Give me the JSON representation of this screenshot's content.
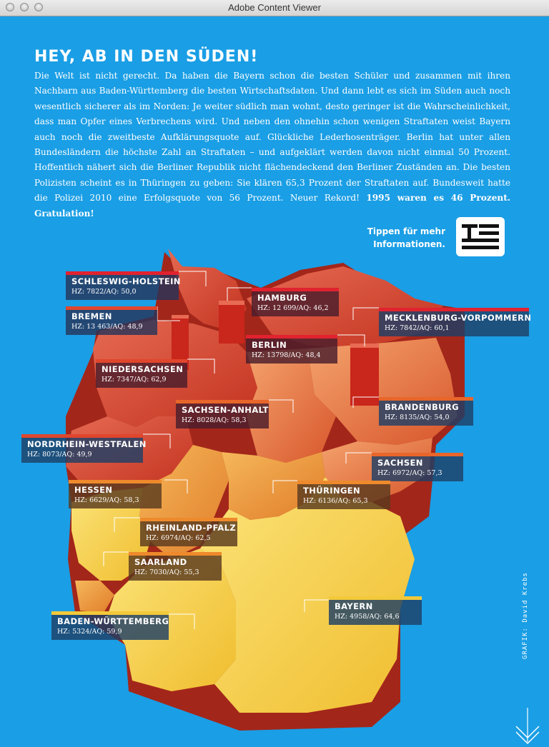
{
  "window": {
    "title": "Adobe Content Viewer"
  },
  "article": {
    "headline": "HEY, AB IN DEN SÜDEN!",
    "body": "Die Welt ist nicht gerecht. Da haben die Bayern schon die besten Schüler und zusammen mit ihren Nachbarn aus Baden-Württemberg die besten Wirtschaftsdaten. Und dann lebt es sich im Süden auch noch wesentlich sicherer als im Norden: Je weiter südlich man wohnt, desto geringer ist die Wahrscheinlichkeit, dass man Opfer eines Verbrechens wird. Und neben den ohnehin schon wenigen Straftaten weist Bayern auch noch die zweitbeste Aufklärungsquote auf. Glückliche Lederhosenträger. Berlin hat unter allen Bundesländern die höchste Zahl an Straftaten – und aufgeklärt werden davon nicht einmal 50 Prozent. Hoffentlich nähert sich die Berliner Republik nicht flächendeckend den Berliner Zuständen an. Die besten Polizisten scheint es in Thüringen zu geben: Sie klären 65,3 Prozent der Straftaten auf. Bundesweit hatte die Polizei 2010 eine Erfolgsquote von 56 Prozent. Neuer Rekord!",
    "highlight": "1995 waren es 46 Prozent. Gratulation!"
  },
  "tip": {
    "line1": "Tippen für mehr",
    "line2": "Informationen.",
    "icon": "text-lines-icon"
  },
  "credit": "GRAFIK: David Krebs",
  "colors": {
    "background": "#1a9ee5",
    "north": "#d9432c",
    "middle": "#e8782f",
    "south": "#f2c93a"
  },
  "regions": [
    {
      "id": "schleswig-holstein",
      "name": "SCHLESWIG-HOLSTEIN",
      "stats": "HZ: 7822/AQ: 50,0",
      "bar": "#e1222f",
      "bg": "#27355a"
    },
    {
      "id": "hamburg",
      "name": "HAMBURG",
      "stats": "HZ: 12 699/AQ: 46,2",
      "bar": "#e1222f",
      "bg": "#4a1d2c"
    },
    {
      "id": "bremen",
      "name": "BREMEN",
      "stats": "HZ: 13 463/AQ: 48,9",
      "bar": "#e0462d",
      "bg": "#27355a"
    },
    {
      "id": "mecklenburg-vorpommern",
      "name": "MECKLENBURG-VORPOMMERN",
      "stats": "HZ: 7842/AQ: 60,1",
      "bar": "#e1222f",
      "bg": "#1f3f66"
    },
    {
      "id": "berlin",
      "name": "BERLIN",
      "stats": "HZ: 13798/AQ: 48,4",
      "bar": "#e1222f",
      "bg": "#4a1d2c"
    },
    {
      "id": "niedersachsen",
      "name": "NIEDERSACHSEN",
      "stats": "HZ: 7347/AQ: 62,9",
      "bar": "#e0462d",
      "bg": "#4a1d2c"
    },
    {
      "id": "brandenburg",
      "name": "BRANDENBURG",
      "stats": "HZ: 8135/AQ: 54,0",
      "bar": "#e8662a",
      "bg": "#1f3f66"
    },
    {
      "id": "sachsen-anhalt",
      "name": "SACHSEN-ANHALT",
      "stats": "HZ: 8028/AQ: 58,3",
      "bar": "#e8662a",
      "bg": "#4a1d2c"
    },
    {
      "id": "nordrhein-westfalen",
      "name": "NORDRHEIN-WESTFALEN",
      "stats": "HZ: 8073/AQ: 49,9",
      "bar": "#e0462d",
      "bg": "#1f3f66"
    },
    {
      "id": "sachsen",
      "name": "SACHSEN",
      "stats": "HZ: 6972/AQ: 57,3",
      "bar": "#e8662a",
      "bg": "#1f3f66"
    },
    {
      "id": "hessen",
      "name": "HESSEN",
      "stats": "HZ: 6629/AQ: 58,3",
      "bar": "#ee8a2c",
      "bg": "#5a3a1e"
    },
    {
      "id": "thueringen",
      "name": "THÜRINGEN",
      "stats": "HZ: 6136/AQ: 65,3",
      "bar": "#ee8a2c",
      "bg": "#5a3a1e"
    },
    {
      "id": "rheinland-pfalz",
      "name": "RHEINLAND-PFALZ",
      "stats": "HZ: 6974/AQ: 62,5",
      "bar": "#ee8a2c",
      "bg": "#5a3a1e"
    },
    {
      "id": "saarland",
      "name": "SAARLAND",
      "stats": "HZ: 7030/AQ: 55,3",
      "bar": "#ee8a2c",
      "bg": "#5a3a1e"
    },
    {
      "id": "bayern",
      "name": "BAYERN",
      "stats": "HZ: 4958/AQ: 64,6",
      "bar": "#f2c93a",
      "bg": "#1f3f66"
    },
    {
      "id": "baden-wuerttemberg",
      "name": "BADEN-WÜRTTEMBERG",
      "stats": "HZ: 5324/AQ: 59,9",
      "bar": "#f2c93a",
      "bg": "#1f3f66"
    }
  ]
}
